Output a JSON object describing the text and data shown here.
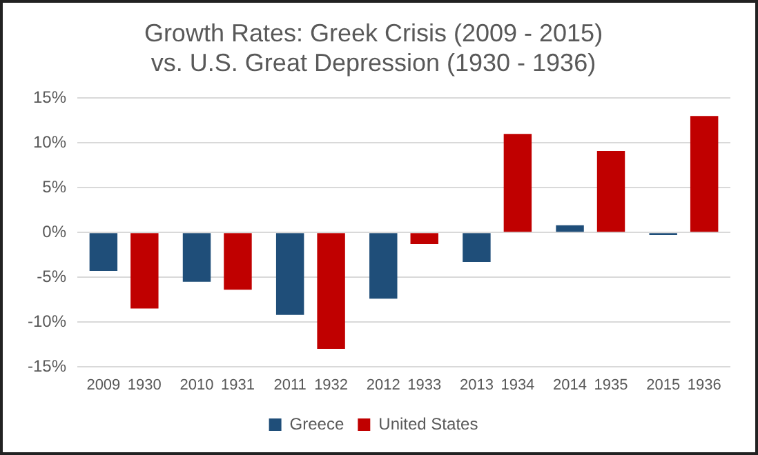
{
  "chart_data": {
    "type": "bar",
    "title": [
      "Growth Rates: Greek Crisis (2009 - 2015)",
      "vs. U.S. Great Depression (1930 - 1936)"
    ],
    "categories": [
      "2009 1930",
      "2010 1931",
      "2011 1932",
      "2012 1933",
      "2013 1934",
      "2014 1935",
      "2015 1936"
    ],
    "series": [
      {
        "name": "Greece",
        "color": "#1f4e79",
        "values": [
          -4.3,
          -5.5,
          -9.2,
          -7.4,
          -3.3,
          0.8,
          -0.3
        ]
      },
      {
        "name": "United States",
        "color": "#c00000",
        "values": [
          -8.5,
          -6.4,
          -13.0,
          -1.3,
          11.0,
          9.1,
          13.0
        ]
      }
    ],
    "ylim": [
      -15,
      15
    ],
    "yticks": [
      {
        "value": -15,
        "label": "-15%"
      },
      {
        "value": -10,
        "label": "-10%"
      },
      {
        "value": -5,
        "label": "-5%"
      },
      {
        "value": 0,
        "label": "0%"
      },
      {
        "value": 5,
        "label": "5%"
      },
      {
        "value": 10,
        "label": "10%"
      },
      {
        "value": 15,
        "label": "15%"
      }
    ],
    "grid": "y",
    "legend": "bottom"
  }
}
